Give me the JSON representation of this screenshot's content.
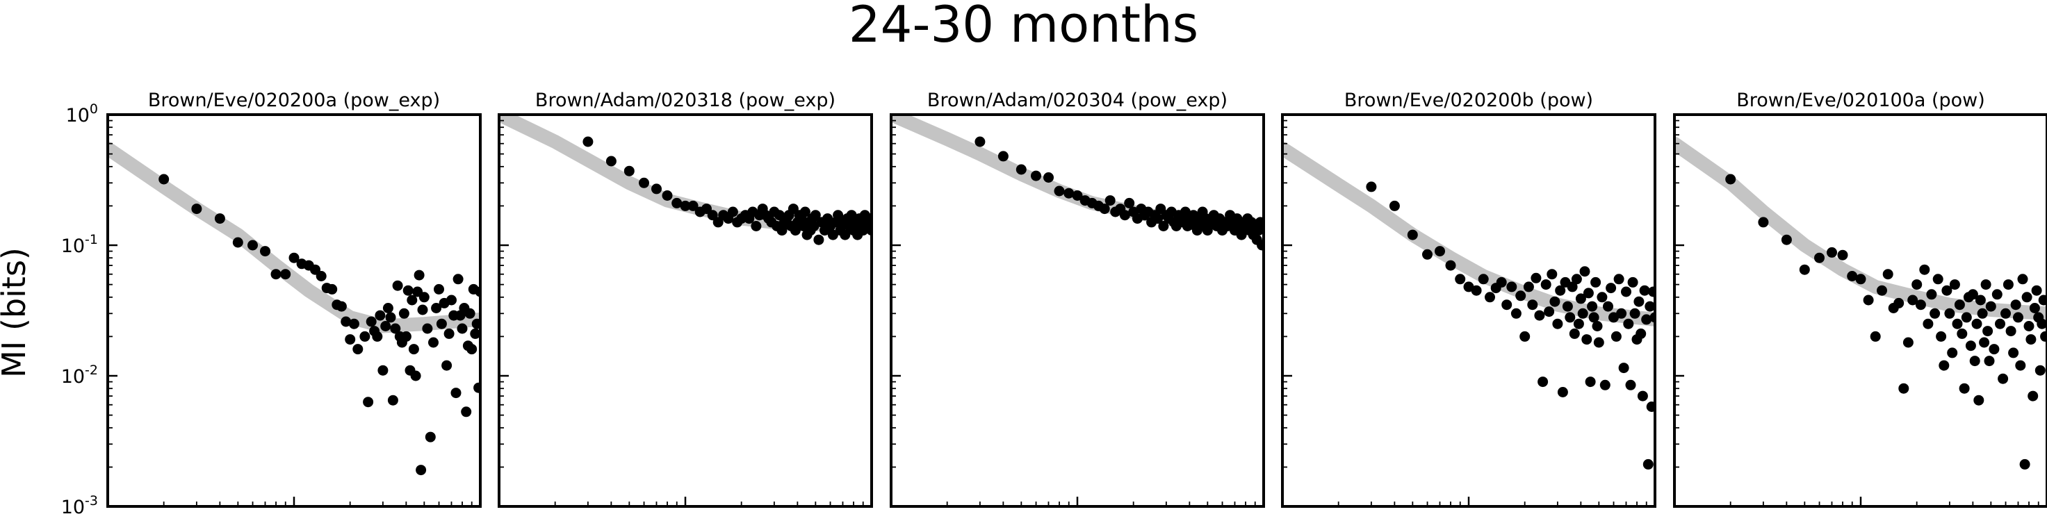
{
  "figure": {
    "title": "24-30 months",
    "ylabel": "MI (bits)",
    "colors": {
      "points": "#000000",
      "fit": "#c4c4c4",
      "frame": "#000000"
    }
  },
  "chart_data": [
    {
      "type": "scatter",
      "title": "Brown/Eve/020200a (pow_exp)",
      "xscale": "log",
      "yscale": "log",
      "xlim": [
        1,
        100
      ],
      "ylim": [
        0.001,
        1
      ],
      "ytick_labels": [
        "10^-3",
        "10^-2",
        "10^-1",
        "10^0"
      ],
      "series": [
        {
          "style": "points",
          "x": [
            2,
            3,
            4,
            5,
            6,
            7,
            8,
            9,
            10,
            11,
            12,
            13,
            14,
            15,
            16,
            17,
            18,
            19,
            20,
            21,
            22,
            24,
            25,
            26,
            27,
            28,
            29,
            30,
            31,
            32,
            33,
            34,
            35,
            36,
            37,
            38,
            39,
            40,
            41,
            42,
            43,
            44,
            45,
            46,
            47,
            48,
            49,
            50,
            52,
            54,
            56,
            58,
            60,
            62,
            64,
            66,
            68,
            70,
            72,
            74,
            76,
            78,
            80,
            82,
            84,
            86,
            88,
            90,
            92,
            94,
            96,
            98,
            100
          ],
          "y": [
            0.32,
            0.19,
            0.16,
            0.105,
            0.1,
            0.09,
            0.06,
            0.06,
            0.08,
            0.072,
            0.07,
            0.065,
            0.058,
            0.047,
            0.046,
            0.035,
            0.034,
            0.026,
            0.019,
            0.025,
            0.016,
            0.02,
            0.0063,
            0.026,
            0.022,
            0.02,
            0.029,
            0.011,
            0.024,
            0.033,
            0.028,
            0.0065,
            0.023,
            0.049,
            0.02,
            0.018,
            0.03,
            0.02,
            0.045,
            0.011,
            0.038,
            0.016,
            0.01,
            0.044,
            0.059,
            0.0019,
            0.032,
            0.04,
            0.023,
            0.0034,
            0.018,
            0.033,
            0.046,
            0.025,
            0.036,
            0.012,
            0.021,
            0.038,
            0.029,
            0.0074,
            0.055,
            0.029,
            0.023,
            0.033,
            0.0053,
            0.017,
            0.03,
            0.016,
            0.046,
            0.021,
            0.025,
            0.0081,
            0.044
          ]
        },
        {
          "style": "fit",
          "x": [
            1,
            2,
            3,
            5,
            8,
            12,
            20,
            30,
            50,
            100
          ],
          "y": [
            0.55,
            0.28,
            0.19,
            0.12,
            0.07,
            0.045,
            0.028,
            0.024,
            0.025,
            0.027
          ]
        }
      ]
    },
    {
      "type": "scatter",
      "title": "Brown/Adam/020318 (pow_exp)",
      "xscale": "log",
      "yscale": "log",
      "xlim": [
        1,
        100
      ],
      "ylim": [
        0.001,
        1
      ],
      "series": [
        {
          "style": "points",
          "x": [
            3,
            4,
            5,
            6,
            7,
            8,
            9,
            10,
            11,
            12,
            13,
            14,
            15,
            16,
            17,
            18,
            19,
            20,
            21,
            22,
            23,
            24,
            25,
            26,
            27,
            28,
            29,
            30,
            31,
            32,
            33,
            34,
            35,
            36,
            37,
            38,
            39,
            40,
            41,
            42,
            43,
            44,
            45,
            46,
            47,
            48,
            49,
            50,
            52,
            54,
            56,
            58,
            60,
            62,
            64,
            66,
            68,
            70,
            72,
            74,
            76,
            78,
            80,
            82,
            84,
            86,
            88,
            90,
            92,
            94,
            96,
            98,
            100
          ],
          "y": [
            0.62,
            0.44,
            0.37,
            0.3,
            0.27,
            0.24,
            0.21,
            0.2,
            0.2,
            0.18,
            0.19,
            0.17,
            0.15,
            0.17,
            0.16,
            0.18,
            0.15,
            0.16,
            0.17,
            0.16,
            0.18,
            0.14,
            0.17,
            0.19,
            0.17,
            0.16,
            0.15,
            0.18,
            0.14,
            0.17,
            0.13,
            0.15,
            0.16,
            0.17,
            0.14,
            0.19,
            0.13,
            0.15,
            0.17,
            0.16,
            0.14,
            0.18,
            0.12,
            0.15,
            0.13,
            0.16,
            0.14,
            0.17,
            0.11,
            0.15,
            0.13,
            0.16,
            0.14,
            0.12,
            0.15,
            0.17,
            0.13,
            0.15,
            0.12,
            0.16,
            0.14,
            0.17,
            0.13,
            0.15,
            0.12,
            0.16,
            0.14,
            0.13,
            0.17,
            0.15,
            0.14,
            0.16,
            0.13
          ]
        },
        {
          "style": "fit",
          "x": [
            1,
            2,
            3,
            5,
            8,
            12,
            20,
            30,
            50,
            100
          ],
          "y": [
            1.0,
            0.62,
            0.45,
            0.3,
            0.22,
            0.19,
            0.16,
            0.15,
            0.145,
            0.14
          ]
        }
      ]
    },
    {
      "type": "scatter",
      "title": "Brown/Adam/020304 (pow_exp)",
      "xscale": "log",
      "yscale": "log",
      "xlim": [
        1,
        100
      ],
      "ylim": [
        0.001,
        1
      ],
      "series": [
        {
          "style": "points",
          "x": [
            3,
            4,
            5,
            6,
            7,
            8,
            9,
            10,
            11,
            12,
            13,
            14,
            15,
            16,
            17,
            18,
            19,
            20,
            21,
            22,
            23,
            24,
            25,
            26,
            27,
            28,
            29,
            30,
            31,
            32,
            33,
            34,
            35,
            36,
            37,
            38,
            39,
            40,
            41,
            42,
            43,
            44,
            45,
            46,
            47,
            48,
            49,
            50,
            52,
            54,
            56,
            58,
            60,
            62,
            64,
            66,
            68,
            70,
            72,
            74,
            76,
            78,
            80,
            82,
            84,
            86,
            88,
            90,
            92,
            94,
            96,
            98,
            100
          ],
          "y": [
            0.62,
            0.48,
            0.38,
            0.34,
            0.33,
            0.26,
            0.25,
            0.24,
            0.22,
            0.21,
            0.2,
            0.19,
            0.22,
            0.18,
            0.19,
            0.17,
            0.21,
            0.18,
            0.16,
            0.19,
            0.17,
            0.18,
            0.15,
            0.17,
            0.16,
            0.19,
            0.14,
            0.17,
            0.16,
            0.18,
            0.15,
            0.14,
            0.17,
            0.16,
            0.15,
            0.18,
            0.14,
            0.16,
            0.15,
            0.17,
            0.14,
            0.13,
            0.16,
            0.15,
            0.18,
            0.14,
            0.16,
            0.13,
            0.15,
            0.17,
            0.14,
            0.16,
            0.13,
            0.15,
            0.14,
            0.17,
            0.15,
            0.13,
            0.16,
            0.14,
            0.12,
            0.15,
            0.14,
            0.16,
            0.13,
            0.15,
            0.12,
            0.14,
            0.11,
            0.13,
            0.15,
            0.1,
            0.14
          ]
        },
        {
          "style": "fit",
          "x": [
            1,
            2,
            3,
            5,
            8,
            12,
            20,
            30,
            50,
            100
          ],
          "y": [
            1.0,
            0.65,
            0.5,
            0.35,
            0.26,
            0.21,
            0.18,
            0.16,
            0.15,
            0.14
          ]
        }
      ]
    },
    {
      "type": "scatter",
      "title": "Brown/Eve/020200b (pow)",
      "xscale": "log",
      "yscale": "log",
      "xlim": [
        1,
        100
      ],
      "ylim": [
        0.001,
        1
      ],
      "series": [
        {
          "style": "points",
          "x": [
            3,
            4,
            5,
            6,
            7,
            8,
            9,
            10,
            11,
            12,
            13,
            14,
            15,
            16,
            17,
            18,
            19,
            20,
            21,
            22,
            23,
            24,
            25,
            26,
            27,
            28,
            29,
            30,
            31,
            32,
            33,
            34,
            35,
            36,
            37,
            38,
            39,
            40,
            41,
            42,
            43,
            44,
            45,
            46,
            47,
            48,
            49,
            50,
            52,
            54,
            56,
            58,
            60,
            62,
            64,
            66,
            68,
            70,
            72,
            74,
            76,
            78,
            80,
            82,
            84,
            86,
            88,
            90,
            92,
            94,
            96,
            98,
            100
          ],
          "y": [
            0.28,
            0.2,
            0.12,
            0.085,
            0.09,
            0.07,
            0.055,
            0.048,
            0.045,
            0.055,
            0.04,
            0.047,
            0.052,
            0.035,
            0.048,
            0.03,
            0.041,
            0.02,
            0.048,
            0.035,
            0.056,
            0.029,
            0.009,
            0.05,
            0.031,
            0.06,
            0.037,
            0.025,
            0.045,
            0.0075,
            0.052,
            0.034,
            0.028,
            0.048,
            0.021,
            0.055,
            0.025,
            0.039,
            0.03,
            0.063,
            0.019,
            0.043,
            0.009,
            0.034,
            0.028,
            0.052,
            0.024,
            0.018,
            0.04,
            0.0085,
            0.034,
            0.047,
            0.028,
            0.02,
            0.055,
            0.03,
            0.0115,
            0.044,
            0.025,
            0.0085,
            0.052,
            0.03,
            0.019,
            0.037,
            0.021,
            0.007,
            0.045,
            0.027,
            0.0021,
            0.034,
            0.0058,
            0.044,
            0.028
          ]
        },
        {
          "style": "fit",
          "x": [
            1,
            2,
            3,
            5,
            8,
            12,
            20,
            30,
            50,
            100
          ],
          "y": [
            0.55,
            0.29,
            0.2,
            0.12,
            0.08,
            0.058,
            0.043,
            0.035,
            0.03,
            0.027
          ]
        }
      ]
    },
    {
      "type": "scatter",
      "title": "Brown/Eve/020100a (pow)",
      "xscale": "log",
      "yscale": "log",
      "xlim": [
        1,
        100
      ],
      "ylim": [
        0.001,
        1
      ],
      "series": [
        {
          "style": "points",
          "x": [
            2,
            3,
            4,
            5,
            6,
            7,
            8,
            9,
            10,
            11,
            12,
            13,
            14,
            15,
            16,
            17,
            18,
            19,
            20,
            21,
            22,
            23,
            24,
            25,
            26,
            27,
            28,
            29,
            30,
            31,
            32,
            33,
            34,
            35,
            36,
            37,
            38,
            39,
            40,
            41,
            42,
            43,
            44,
            45,
            46,
            47,
            48,
            49,
            50,
            52,
            54,
            56,
            58,
            60,
            62,
            64,
            66,
            68,
            70,
            72,
            74,
            76,
            78,
            80,
            82,
            84,
            86,
            88,
            90,
            92,
            94,
            96,
            98
          ],
          "y": [
            0.32,
            0.15,
            0.11,
            0.065,
            0.08,
            0.088,
            0.084,
            0.058,
            0.055,
            0.038,
            0.02,
            0.045,
            0.06,
            0.033,
            0.036,
            0.008,
            0.018,
            0.038,
            0.05,
            0.035,
            0.065,
            0.025,
            0.042,
            0.03,
            0.055,
            0.02,
            0.012,
            0.045,
            0.03,
            0.015,
            0.05,
            0.025,
            0.035,
            0.021,
            0.008,
            0.028,
            0.04,
            0.017,
            0.042,
            0.013,
            0.025,
            0.0065,
            0.038,
            0.03,
            0.018,
            0.05,
            0.022,
            0.013,
            0.034,
            0.016,
            0.042,
            0.025,
            0.0095,
            0.03,
            0.05,
            0.022,
            0.015,
            0.035,
            0.028,
            0.012,
            0.055,
            0.0021,
            0.04,
            0.024,
            0.019,
            0.007,
            0.033,
            0.045,
            0.028,
            0.011,
            0.025,
            0.038,
            0.02
          ]
        },
        {
          "style": "fit",
          "x": [
            1,
            2,
            3,
            5,
            8,
            12,
            20,
            30,
            50,
            100
          ],
          "y": [
            0.6,
            0.3,
            0.18,
            0.1,
            0.065,
            0.048,
            0.04,
            0.035,
            0.032,
            0.03
          ]
        }
      ]
    }
  ]
}
